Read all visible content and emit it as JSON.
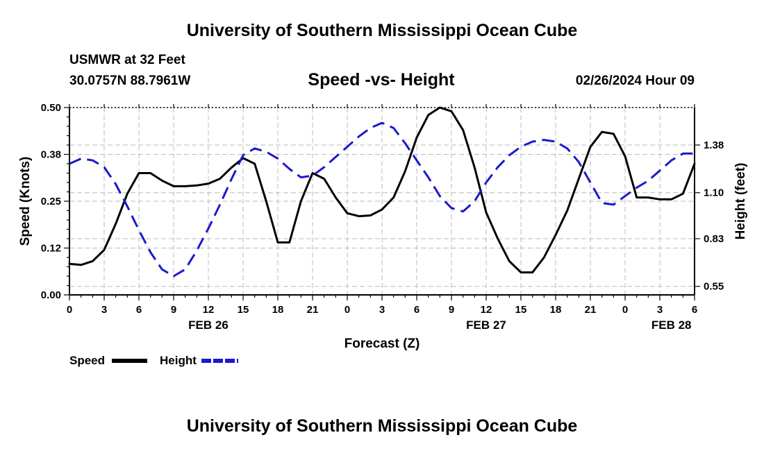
{
  "header": {
    "title": "University of Southern Mississippi Ocean Cube",
    "station": "USMWR at 32 Feet",
    "coords": "30.0757N  88.7961W",
    "subtitle": "Speed -vs- Height",
    "datetime": "02/26/2024 Hour 09"
  },
  "footer": {
    "title": "University of Southern Mississippi Ocean Cube"
  },
  "chart_data": {
    "type": "line",
    "title": "Speed -vs- Height",
    "xlabel": "Forecast (Z)",
    "ylabel": "Speed (Knots)",
    "y2label": "Height (feet)",
    "xlim": [
      0,
      54
    ],
    "ylim": [
      0,
      0.5
    ],
    "y2lim": [
      0.5,
      1.6
    ],
    "grid": true,
    "x_ticks": [
      0,
      3,
      6,
      9,
      12,
      15,
      18,
      21,
      24,
      27,
      30,
      33,
      36,
      39,
      42,
      45,
      48,
      51,
      54
    ],
    "x_tick_labels": [
      "0",
      "3",
      "6",
      "9",
      "12",
      "15",
      "18",
      "21",
      "0",
      "3",
      "6",
      "9",
      "12",
      "15",
      "18",
      "21",
      "0",
      "3",
      "6"
    ],
    "date_labels": [
      {
        "x": 12,
        "label": "FEB 26"
      },
      {
        "x": 36,
        "label": "FEB 27"
      },
      {
        "x": 52,
        "label": "FEB 28"
      }
    ],
    "y_ticks": [
      0,
      0.125,
      0.25,
      0.375,
      0.5
    ],
    "y_tick_labels": [
      "0.00",
      "0.12",
      "0.25",
      "0.38",
      "0.50"
    ],
    "y2_ticks": [
      0.55,
      0.83,
      1.1,
      1.38
    ],
    "y2_tick_labels": [
      "0.55",
      "0.83",
      "1.10",
      "1.38"
    ],
    "series": [
      {
        "name": "Speed",
        "axis": "left",
        "color": "#000000",
        "dash": "solid",
        "x": [
          0,
          1,
          2,
          3,
          4,
          5,
          6,
          7,
          8,
          9,
          10,
          11,
          12,
          13,
          14,
          15,
          16,
          17,
          18,
          19,
          20,
          21,
          22,
          23,
          24,
          25,
          26,
          27,
          28,
          29,
          30,
          31,
          32,
          33,
          34,
          35,
          36,
          37,
          38,
          39,
          40,
          41,
          42,
          43,
          44,
          45,
          46,
          47,
          48,
          49,
          50,
          51,
          52,
          53,
          54
        ],
        "y": [
          0.083,
          0.08,
          0.09,
          0.12,
          0.19,
          0.27,
          0.325,
          0.325,
          0.305,
          0.29,
          0.29,
          0.292,
          0.297,
          0.31,
          0.34,
          0.365,
          0.35,
          0.25,
          0.14,
          0.14,
          0.25,
          0.325,
          0.31,
          0.26,
          0.218,
          0.21,
          0.212,
          0.228,
          0.26,
          0.33,
          0.42,
          0.48,
          0.5,
          0.49,
          0.44,
          0.34,
          0.22,
          0.15,
          0.09,
          0.06,
          0.06,
          0.1,
          0.16,
          0.225,
          0.31,
          0.395,
          0.435,
          0.43,
          0.37,
          0.26,
          0.26,
          0.255,
          0.255,
          0.27,
          0.35
        ]
      },
      {
        "name": "Height",
        "axis": "right",
        "color": "#1a1acc",
        "dash": "dashed",
        "x": [
          0,
          1,
          2,
          3,
          4,
          5,
          6,
          7,
          8,
          9,
          10,
          11,
          12,
          13,
          14,
          15,
          16,
          17,
          18,
          19,
          20,
          21,
          22,
          23,
          24,
          25,
          26,
          27,
          28,
          29,
          30,
          31,
          32,
          33,
          34,
          35,
          36,
          37,
          38,
          39,
          40,
          41,
          42,
          43,
          44,
          45,
          46,
          47,
          48,
          49,
          50,
          51,
          52,
          53,
          54
        ],
        "y": [
          1.27,
          1.3,
          1.29,
          1.25,
          1.15,
          1.02,
          0.88,
          0.75,
          0.65,
          0.61,
          0.65,
          0.76,
          0.89,
          1.03,
          1.18,
          1.32,
          1.36,
          1.34,
          1.3,
          1.24,
          1.19,
          1.2,
          1.25,
          1.31,
          1.37,
          1.43,
          1.48,
          1.51,
          1.48,
          1.39,
          1.29,
          1.19,
          1.08,
          1.01,
          0.99,
          1.05,
          1.16,
          1.25,
          1.32,
          1.37,
          1.4,
          1.41,
          1.4,
          1.36,
          1.28,
          1.16,
          1.04,
          1.03,
          1.08,
          1.13,
          1.17,
          1.23,
          1.29,
          1.33,
          1.33
        ]
      }
    ],
    "legend": [
      {
        "label": "Speed",
        "color": "#000000",
        "dash": "solid"
      },
      {
        "label": "Height",
        "color": "#1a1acc",
        "dash": "dashed"
      }
    ]
  }
}
